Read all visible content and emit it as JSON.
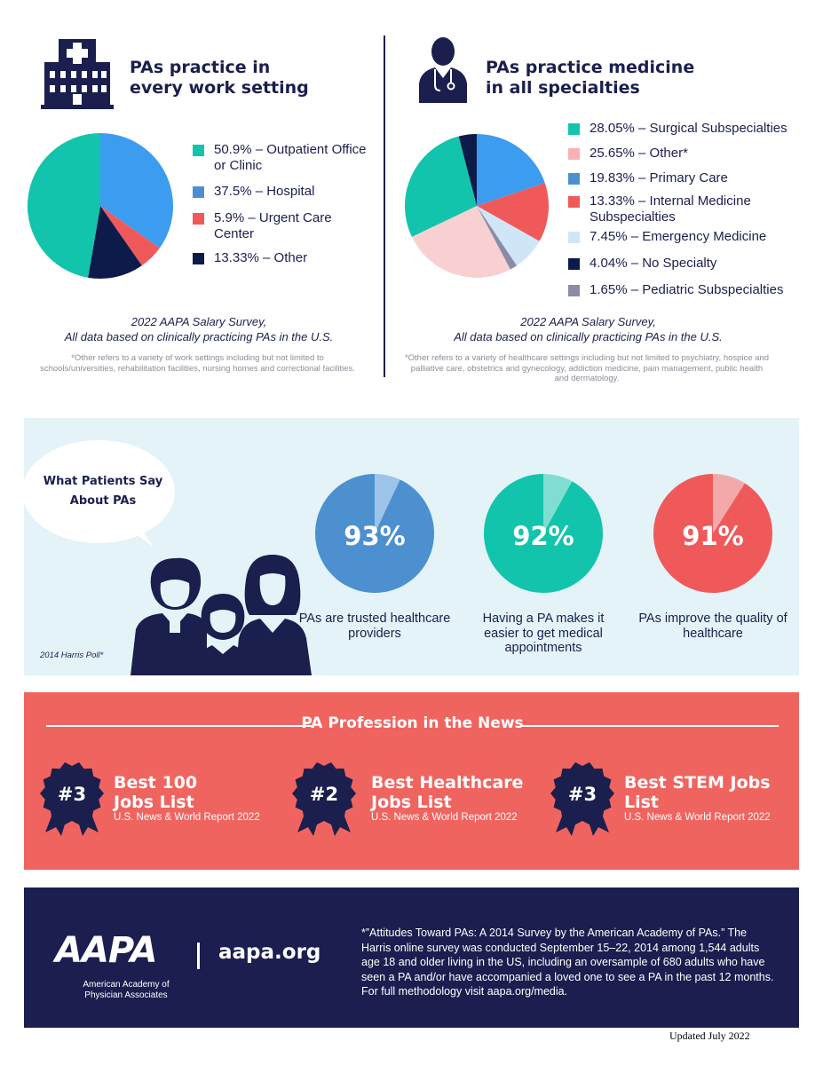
{
  "left_panel": {
    "title": "PAs practice in\nevery work setting",
    "survey": "2022 AAPA Salary Survey,\nAll data based on clinically practicing PAs in the U.S.",
    "footnote": "*Other refers to a variety of work settings including but not limited to schools/universities, rehabilitation facilities, nursing homes and correctional facilities."
  },
  "right_panel": {
    "title": "PAs practice medicine\nin all specialties",
    "survey": "2022 AAPA Salary Survey,\nAll data based on clinically practicing PAs in the U.S.",
    "footnote": "*Other refers to a variety of healthcare settings including but not limited to psychiatry, hospice and palliative care, obstetrics and gynecology, addiction medicine, pain management, public health and dermatology."
  },
  "chart_data": [
    {
      "type": "pie",
      "title": "PAs practice in every work setting",
      "slices": [
        {
          "label": "50.9%  – Outpatient Office\n            or Clinic",
          "value": 50.9,
          "color": "#13c4ac"
        },
        {
          "label": "37.5%  – Hospital",
          "value": 37.5,
          "color": "#3c9cf0"
        },
        {
          "label": "5.9%  – Urgent Care\n          Center",
          "value": 5.9,
          "color": "#f0595a"
        },
        {
          "label": "13.33%  – Other",
          "value": 13.33,
          "color": "#0d1b4b"
        }
      ]
    },
    {
      "type": "pie",
      "title": "PAs practice medicine in all specialties",
      "slices": [
        {
          "label": "28.05%  – Surgical Subspecialties",
          "value": 28.05,
          "color": "#13c4ac"
        },
        {
          "label": "25.65%  – Other*",
          "value": 25.65,
          "color": "#f8d0d2"
        },
        {
          "label": "19.83%  – Primary Care",
          "value": 19.83,
          "color": "#3c9cf0"
        },
        {
          "label": "13.33%  – Internal Medicine\n               Subspecialties",
          "value": 13.33,
          "color": "#f0595a"
        },
        {
          "label": "7.45%  – Emergency Medicine",
          "value": 7.45,
          "color": "#cfe6f8"
        },
        {
          "label": "4.04%  – No Specialty",
          "value": 4.04,
          "color": "#0d1b4b"
        },
        {
          "label": "1.65%  – Pediatric Subspecialties",
          "value": 1.65,
          "color": "#8a8ca6"
        }
      ]
    },
    {
      "type": "pie",
      "title": "What Patients Say About PAs",
      "stats": [
        {
          "value": 93,
          "label": "93%",
          "caption": "PAs are trusted healthcare providers",
          "color": "#4d90d0",
          "rest_color": "#9cc4e8"
        },
        {
          "value": 92,
          "label": "92%",
          "caption": "Having a PA makes it easier to get medical appointments",
          "color": "#13c4ac",
          "rest_color": "#7fded0"
        },
        {
          "value": 91,
          "label": "91%",
          "caption": "PAs improve the quality of healthcare",
          "color": "#f0595a",
          "rest_color": "#f3a9a9"
        }
      ]
    }
  ],
  "patients": {
    "bubble": "What Patients Say\nAbout PAs",
    "source": "2014 Harris Poll*"
  },
  "news": {
    "title": "PA Profession in the News",
    "awards": [
      {
        "rank": "#3",
        "title": "Best 100\nJobs List",
        "source": "U.S. News & World Report 2022"
      },
      {
        "rank": "#2",
        "title": "Best Healthcare\nJobs List",
        "source": "U.S. News & World Report 2022"
      },
      {
        "rank": "#3",
        "title": "Best STEM Jobs\nList",
        "source": "U.S. News & World Report 2022"
      }
    ]
  },
  "footer": {
    "logo": "AAPA",
    "org_name": "American Academy of\nPhysician Associates",
    "url": "aapa.org",
    "note": "*”Attitudes Toward PAs: A 2014 Survey by the American Academy of PAs.” The Harris online survey was conducted September 15–22, 2014 among 1,544 adults age 18 and older living in the US, including an oversample of 680 adults who have seen a PA and/or have accompanied a loved one to see a PA in the past 12 months. For full methodology visit aapa.org/media."
  },
  "updated": "Updated July 2022"
}
